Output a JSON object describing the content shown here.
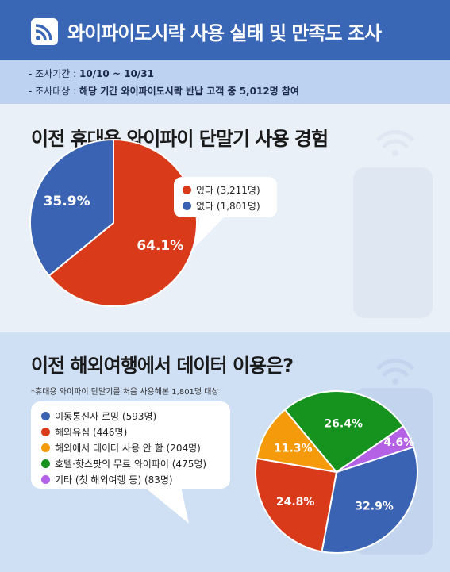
{
  "header": {
    "title": "와이파이도시락 사용 실태 및 만족도 조사",
    "icon": "rss-icon"
  },
  "info": {
    "period_label": "- 조사기간 :",
    "period_value": "10/10 ~ 10/31",
    "target_label": "- 조사대상 :",
    "target_value": "해당 기간 와이파이도시락 반납 고객 중 5,012명 참여"
  },
  "chart_data": [
    {
      "type": "pie",
      "title": "이전 휴대용 와이파이 단말기 사용 경험",
      "slices": [
        {
          "label": "있다 (3,211명)",
          "value": 64.1,
          "display": "64.1%",
          "color": "#d93a1a"
        },
        {
          "label": "없다 (1,801명)",
          "value": 35.9,
          "display": "35.9%",
          "color": "#3b63b3"
        }
      ]
    },
    {
      "type": "pie",
      "title": "이전 해외여행에서 데이터 이용은?",
      "subtitle": "*휴대용 와이파이 단말기를 처음 사용해본 1,801명 대상",
      "slices": [
        {
          "label": "이동통신사 로밍 (593명)",
          "value": 32.9,
          "display": "32.9%",
          "color": "#3b63b3"
        },
        {
          "label": "해외유심 (446명)",
          "value": 24.8,
          "display": "24.8%",
          "color": "#d93a1a"
        },
        {
          "label": "해외에서 데이터 사용 안 함 (204명)",
          "value": 11.3,
          "display": "11.3%",
          "color": "#f59a0b"
        },
        {
          "label": "호텔·핫스팟의 무료 와이파이 (475명)",
          "value": 26.4,
          "display": "26.4%",
          "color": "#16921f"
        },
        {
          "label": "기타 (첫 해외여행 등) (83명)",
          "value": 4.6,
          "display": "4.6%",
          "color": "#b561e6"
        }
      ]
    }
  ]
}
